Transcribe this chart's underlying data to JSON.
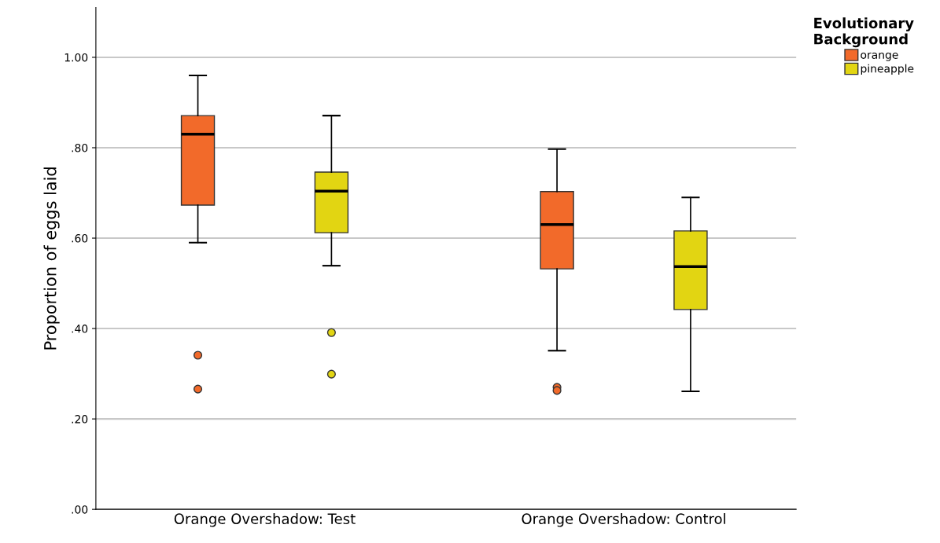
{
  "chart_data": {
    "type": "box",
    "ylabel": "Proportion of eggs laid",
    "legend_title": "Evolutionary\nBackground",
    "categories": [
      "Orange Overshadow: Test",
      "Orange Overshadow: Control"
    ],
    "series": [
      {
        "name": "orange",
        "color": "#f26a2a",
        "boxes": [
          {
            "low": 0.59,
            "q1": 0.673,
            "median": 0.83,
            "q3": 0.871,
            "high": 0.96,
            "outliers": [
              0.341,
              0.266
            ]
          },
          {
            "low": 0.351,
            "q1": 0.532,
            "median": 0.63,
            "q3": 0.703,
            "high": 0.797,
            "outliers": [
              0.27,
              0.263
            ]
          }
        ]
      },
      {
        "name": "pineapple",
        "color": "#e2d512",
        "boxes": [
          {
            "low": 0.539,
            "q1": 0.612,
            "median": 0.704,
            "q3": 0.746,
            "high": 0.871,
            "outliers": [
              0.391,
              0.299
            ]
          },
          {
            "low": 0.261,
            "q1": 0.442,
            "median": 0.537,
            "q3": 0.616,
            "high": 0.69
          }
        ]
      }
    ],
    "ylim": [
      0,
      1.11
    ],
    "yticks": [
      {
        "value": 0,
        "label": ".00"
      },
      {
        "value": 0.2,
        "label": ".20"
      },
      {
        "value": 0.4,
        "label": ".40"
      },
      {
        "value": 0.6,
        "label": ".60"
      },
      {
        "value": 0.8,
        "label": ".80"
      },
      {
        "value": 1.0,
        "label": "1.00"
      }
    ],
    "grid": "y",
    "legend": "top right",
    "marker": "circle"
  }
}
